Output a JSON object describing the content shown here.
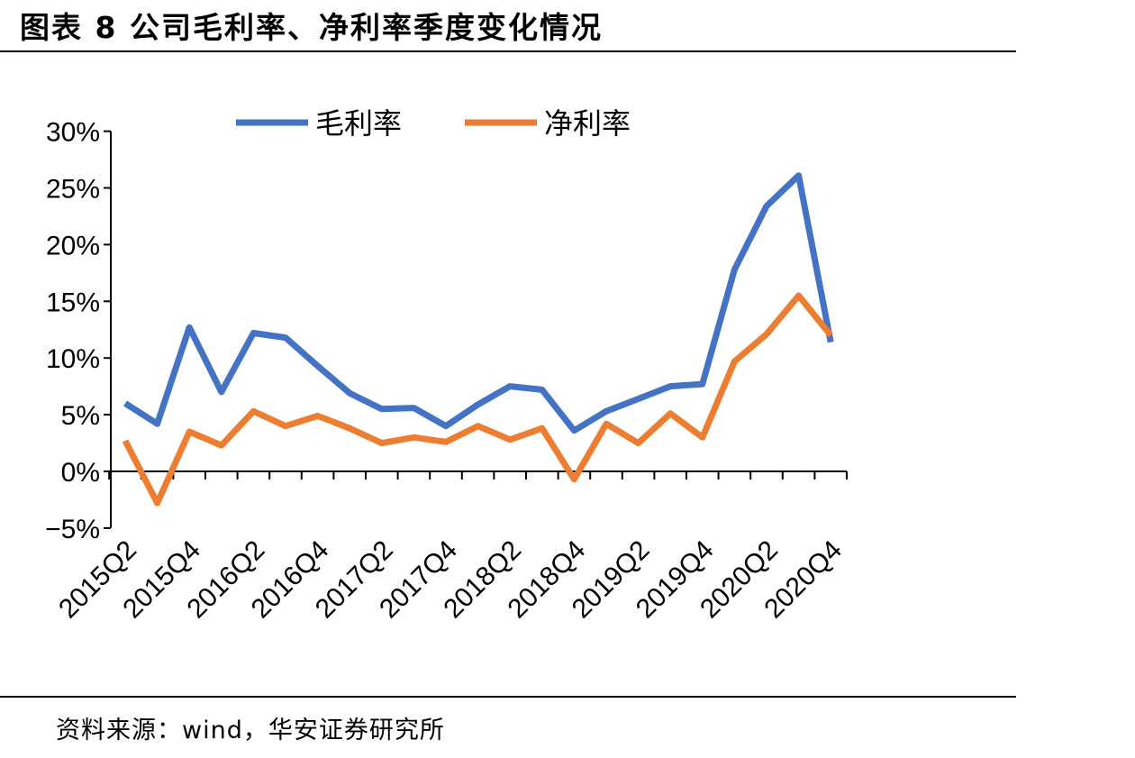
{
  "header": {
    "title": "图表 8 公司毛利率、净利率季度变化情况"
  },
  "footer": {
    "source": "资料来源：wind，华安证券研究所"
  },
  "chart_data": {
    "type": "line",
    "title": "",
    "xlabel": "",
    "ylabel": "",
    "ylim": [
      -5,
      30
    ],
    "y_ticks": [
      "30%",
      "25%",
      "20%",
      "15%",
      "10%",
      "5%",
      "0%",
      "−5%"
    ],
    "y_tick_values": [
      30,
      25,
      20,
      15,
      10,
      5,
      0,
      -5
    ],
    "x": [
      "2015Q2",
      "2015Q3",
      "2015Q4",
      "2016Q1",
      "2016Q2",
      "2016Q3",
      "2016Q4",
      "2017Q1",
      "2017Q2",
      "2017Q3",
      "2017Q4",
      "2018Q1",
      "2018Q2",
      "2018Q3",
      "2018Q4",
      "2019Q1",
      "2019Q2",
      "2019Q3",
      "2019Q4",
      "2020Q1",
      "2020Q2",
      "2020Q3",
      "2020Q4"
    ],
    "x_tick_labels": [
      "2015Q2",
      "2015Q4",
      "2016Q2",
      "2016Q4",
      "2017Q2",
      "2017Q4",
      "2018Q2",
      "2018Q4",
      "2019Q2",
      "2019Q4",
      "2020Q2",
      "2020Q4"
    ],
    "legend_position": "top",
    "grid": false,
    "series": [
      {
        "name": "毛利率",
        "color": "#4472C4",
        "values": [
          6.0,
          4.2,
          12.7,
          7.0,
          12.2,
          11.8,
          9.3,
          6.9,
          5.5,
          5.6,
          4.0,
          5.9,
          7.5,
          7.2,
          3.6,
          5.3,
          6.4,
          7.5,
          7.7,
          17.8,
          23.4,
          26.1,
          11.4
        ]
      },
      {
        "name": "净利率",
        "color": "#ED7D31",
        "values": [
          2.7,
          -2.8,
          3.5,
          2.3,
          5.3,
          4.0,
          4.9,
          3.8,
          2.5,
          3.0,
          2.6,
          4.0,
          2.8,
          3.8,
          -0.7,
          4.2,
          2.5,
          5.1,
          3.0,
          9.7,
          12.1,
          15.5,
          12.0
        ]
      }
    ]
  }
}
